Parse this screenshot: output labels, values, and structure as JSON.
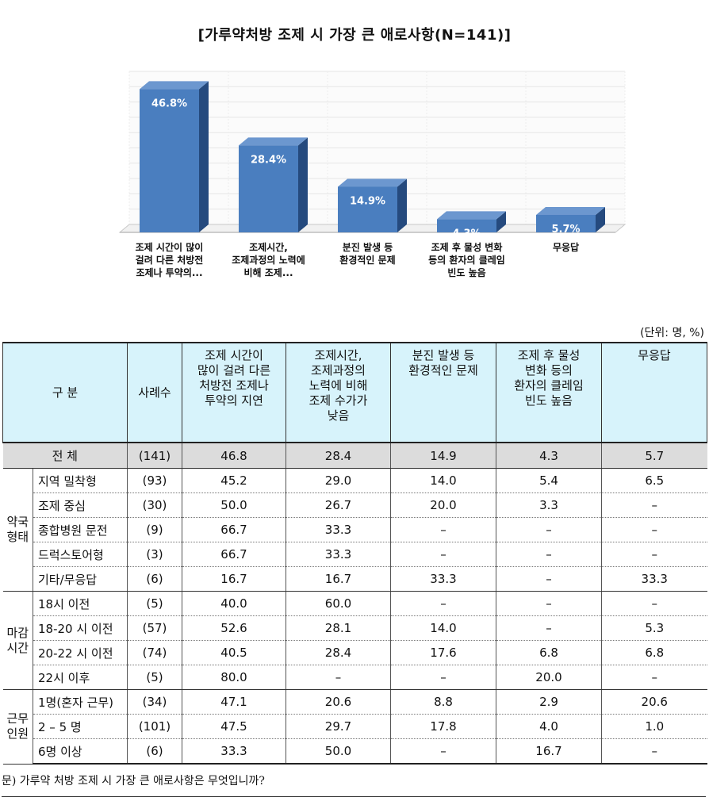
{
  "title": "[가루약처방 조제 시 가장 큰 애로사항(N=141)]",
  "chart_data": {
    "type": "bar",
    "title": "[가루약처방 조제 시 가장 큰 애로사항(N=141)]",
    "categories": [
      [
        "조제 시간이 많이",
        "걸려 다른 처방전",
        "조제나 투약의..."
      ],
      [
        "조제시간,",
        "조제과정의 노력에",
        "비해 조제..."
      ],
      [
        "분진 발생 등",
        "환경적인 문제"
      ],
      [
        "조제 후 물성 변화",
        "등의 환자의 클레임",
        "빈도 높음"
      ],
      [
        "무응답"
      ]
    ],
    "values": [
      46.8,
      28.4,
      14.9,
      4.3,
      5.7
    ],
    "value_labels": [
      "46.8%",
      "28.4%",
      "14.9%",
      "4.3%",
      "5.7%"
    ],
    "ylim": [
      0,
      50
    ],
    "grid": true,
    "bar_color": "#4a7ebf",
    "bar_side_color": "#254a7e",
    "bar_top_color": "#6c97cf"
  },
  "table": {
    "unit": "(단위: 명, %)",
    "headers": {
      "category": "구 분",
      "count": "사례수",
      "cols": [
        [
          "조제 시간이",
          "많이 걸려 다른",
          "처방전 조제나",
          "투약의 지연"
        ],
        [
          "조제시간,",
          "조제과정의",
          "노력에 비해",
          "조제 수가가",
          "낮음"
        ],
        [
          "분진 발생 등",
          "환경적인 문제"
        ],
        [
          "조제 후 물성",
          "변화 등의",
          "환자의 클레임",
          "빈도 높음"
        ],
        [
          "무응답"
        ]
      ]
    },
    "total": {
      "label": "전 체",
      "count": "(141)",
      "values": [
        "46.8",
        "28.4",
        "14.9",
        "4.3",
        "5.7"
      ]
    },
    "groups": [
      {
        "label": [
          "약국",
          "형태"
        ],
        "rows": [
          {
            "label": "지역 밀착형",
            "count": "(93)",
            "values": [
              "45.2",
              "29.0",
              "14.0",
              "5.4",
              "6.5"
            ]
          },
          {
            "label": "조제 중심",
            "count": "(30)",
            "values": [
              "50.0",
              "26.7",
              "20.0",
              "3.3",
              "–"
            ]
          },
          {
            "label": "종합병원 문전",
            "count": "(9)",
            "values": [
              "66.7",
              "33.3",
              "–",
              "–",
              "–"
            ]
          },
          {
            "label": "드럭스토어형",
            "count": "(3)",
            "values": [
              "66.7",
              "33.3",
              "–",
              "–",
              "–"
            ]
          },
          {
            "label": "기타/무응답",
            "count": "(6)",
            "values": [
              "16.7",
              "16.7",
              "33.3",
              "–",
              "33.3"
            ]
          }
        ]
      },
      {
        "label": [
          "마감",
          "시간"
        ],
        "rows": [
          {
            "label": "18시 이전",
            "count": "(5)",
            "values": [
              "40.0",
              "60.0",
              "–",
              "–",
              "–"
            ]
          },
          {
            "label": "18-20 시 이전",
            "count": "(57)",
            "values": [
              "52.6",
              "28.1",
              "14.0",
              "–",
              "5.3"
            ]
          },
          {
            "label": "20-22 시 이전",
            "count": "(74)",
            "values": [
              "40.5",
              "28.4",
              "17.6",
              "6.8",
              "6.8"
            ]
          },
          {
            "label": "22시 이후",
            "count": "(5)",
            "values": [
              "80.0",
              "–",
              "–",
              "20.0",
              "–"
            ]
          }
        ]
      },
      {
        "label": [
          "근무",
          "인원"
        ],
        "rows": [
          {
            "label": "1명(혼자 근무)",
            "count": "(34)",
            "values": [
              "47.1",
              "20.6",
              "8.8",
              "2.9",
              "20.6"
            ]
          },
          {
            "label": "2 – 5 명",
            "count": "(101)",
            "values": [
              "47.5",
              "29.7",
              "17.8",
              "4.0",
              "1.0"
            ]
          },
          {
            "label": "6명 이상",
            "count": "(6)",
            "values": [
              "33.3",
              "50.0",
              "–",
              "16.7",
              "–"
            ]
          }
        ]
      }
    ]
  },
  "question": "문) 가루약 처방 조제 시 가장 큰 애로사항은 무엇입니까?"
}
